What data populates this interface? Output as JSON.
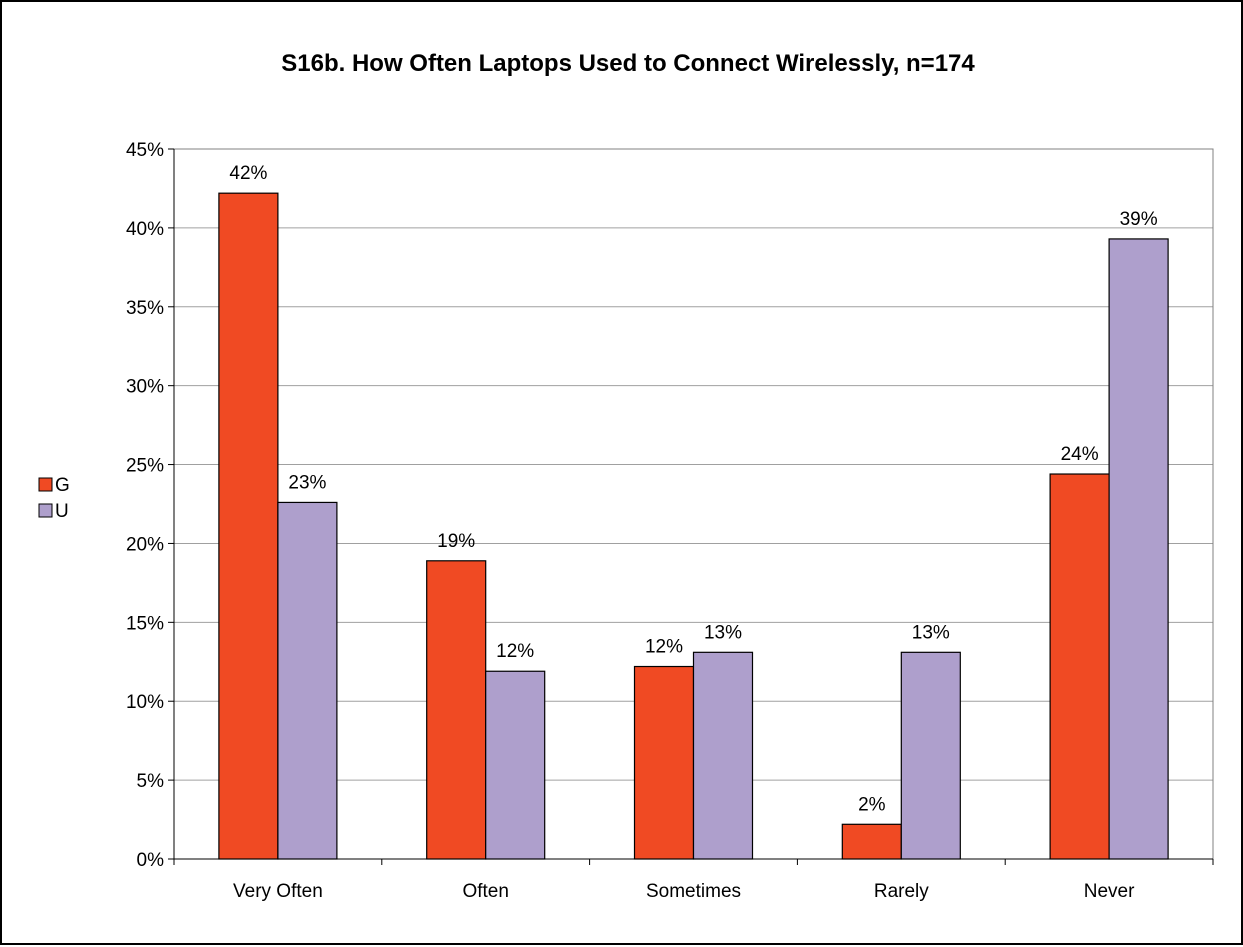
{
  "chart_data": {
    "type": "bar",
    "title": "S16b. How Often Laptops Used to Connect Wirelessly, n=174",
    "xlabel": "",
    "ylabel": "",
    "categories": [
      "Very Often",
      "Often",
      "Sometimes",
      "Rarely",
      "Never"
    ],
    "series": [
      {
        "name": "G",
        "color": "#f04a23",
        "values": [
          42.2,
          18.9,
          12.2,
          2.2,
          24.4
        ],
        "labels": [
          "42%",
          "19%",
          "12%",
          "2%",
          "24%"
        ]
      },
      {
        "name": "U",
        "color": "#ae9fcc",
        "values": [
          22.6,
          11.9,
          13.1,
          13.1,
          39.3
        ],
        "labels": [
          "23%",
          "12%",
          "13%",
          "13%",
          "39%"
        ]
      }
    ],
    "ylim": [
      0,
      45
    ],
    "yticks": [
      0,
      5,
      10,
      15,
      20,
      25,
      30,
      35,
      40,
      45
    ],
    "ytick_labels": [
      "0%",
      "5%",
      "10%",
      "15%",
      "20%",
      "25%",
      "30%",
      "35%",
      "40%",
      "45%"
    ],
    "grid": true,
    "legend_position": "left"
  }
}
